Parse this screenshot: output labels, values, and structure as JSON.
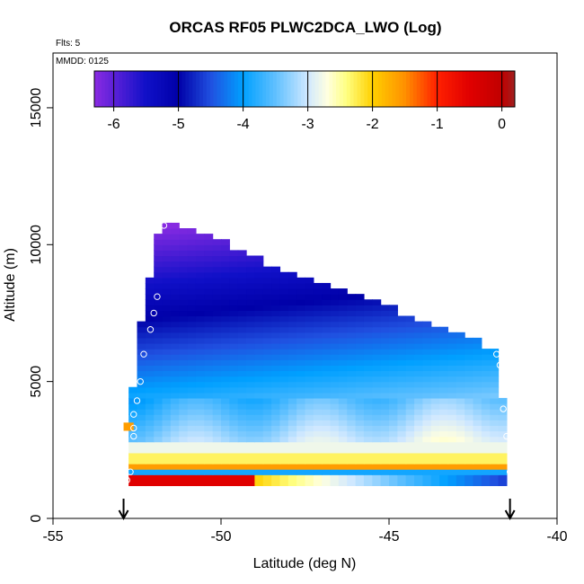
{
  "chart_data": {
    "type": "heatmap",
    "title": "ORCAS RF05 PLWC2DCA_LWO (Log)",
    "flights_note": "Flts: 5",
    "date_note": "MMDD: 0125",
    "xlabel": "Latitude (deg N)",
    "ylabel": "Altitude (m)",
    "xlim": [
      -55,
      -40
    ],
    "ylim": [
      0,
      17000
    ],
    "x_ticks": [
      -55,
      -50,
      -45,
      -40
    ],
    "x_tick_labels": [
      "-55",
      "-50",
      "-45",
      "-40"
    ],
    "y_ticks": [
      0,
      5000,
      10000,
      15000
    ],
    "y_tick_labels": [
      "0",
      "5000",
      "10000",
      "15000"
    ],
    "colorbar": {
      "range": [
        -6.3,
        0.2
      ],
      "ticks": [
        -6,
        -5,
        -4,
        -3,
        -2,
        -1,
        0
      ],
      "tick_labels": [
        "-6",
        "-5",
        "-4",
        "-3",
        "-2",
        "-1",
        "0"
      ],
      "stops": [
        {
          "v": -6.3,
          "c": "#8a2be2"
        },
        {
          "v": -5.5,
          "c": "#1010c8"
        },
        {
          "v": -5.0,
          "c": "#0000a8"
        },
        {
          "v": -4.5,
          "c": "#2050e0"
        },
        {
          "v": -4.0,
          "c": "#00a0ff"
        },
        {
          "v": -3.5,
          "c": "#60c0ff"
        },
        {
          "v": -3.0,
          "c": "#d0e8ff"
        },
        {
          "v": -2.7,
          "c": "#ffffe0"
        },
        {
          "v": -2.4,
          "c": "#ffff80"
        },
        {
          "v": -2.0,
          "c": "#ffd000"
        },
        {
          "v": -1.5,
          "c": "#ff9000"
        },
        {
          "v": -1.0,
          "c": "#ff2000"
        },
        {
          "v": -0.5,
          "c": "#e00000"
        },
        {
          "v": 0.0,
          "c": "#c00000"
        },
        {
          "v": 0.2,
          "c": "#a02020"
        }
      ]
    },
    "arrows_latitude": [
      -52.9,
      -41.4
    ],
    "upper_boundary": [
      [
        -51.8,
        10800
      ],
      [
        -51.3,
        10600
      ],
      [
        -50.8,
        10300
      ],
      [
        -50.3,
        10100
      ],
      [
        -49.8,
        9800
      ],
      [
        -49.3,
        9500
      ],
      [
        -48.8,
        9200
      ],
      [
        -48.3,
        9000
      ],
      [
        -47.8,
        8800
      ],
      [
        -47.3,
        8500
      ],
      [
        -46.8,
        8300
      ],
      [
        -46.3,
        8100
      ],
      [
        -45.8,
        7900
      ],
      [
        -45.3,
        7700
      ],
      [
        -44.8,
        7400
      ],
      [
        -44.3,
        7200
      ],
      [
        -43.8,
        7000
      ],
      [
        -43.3,
        6700
      ],
      [
        -42.8,
        6500
      ],
      [
        -42.3,
        6200
      ],
      [
        -41.8,
        6000
      ]
    ],
    "west_edge": [
      [
        1200,
        -52.8
      ],
      [
        3300,
        -52.8
      ],
      [
        5000,
        -52.6
      ],
      [
        7000,
        -52.4
      ],
      [
        8300,
        -52.2
      ],
      [
        10800,
        -51.8
      ]
    ],
    "east_edge": [
      [
        1200,
        -41.4
      ],
      [
        3300,
        -41.5
      ],
      [
        5000,
        -41.7
      ],
      [
        6000,
        -41.8
      ]
    ],
    "low_level_bands": [
      {
        "y0": 1300,
        "y1": 1600,
        "value": -0.5
      },
      {
        "y0": 1600,
        "y1": 1800,
        "value": -3.9
      },
      {
        "y0": 1800,
        "y1": 2100,
        "value": -1.6
      },
      {
        "y0": 2100,
        "y1": 2400,
        "value": -2.3
      },
      {
        "y0": 2400,
        "y1": 2800,
        "value": -2.8
      }
    ],
    "profile_points": [
      [
        -52.8,
        1400
      ],
      [
        -52.7,
        1700
      ],
      [
        -52.6,
        3000
      ],
      [
        -52.6,
        3300
      ],
      [
        -52.6,
        3800
      ],
      [
        -52.5,
        4300
      ],
      [
        -52.4,
        5000
      ],
      [
        -52.3,
        6000
      ],
      [
        -52.1,
        6900
      ],
      [
        -52.0,
        7500
      ],
      [
        -51.9,
        8100
      ],
      [
        -51.7,
        10700
      ],
      [
        -41.8,
        6000
      ],
      [
        -41.7,
        5600
      ],
      [
        -41.6,
        5000
      ],
      [
        -41.6,
        4000
      ],
      [
        -41.5,
        3000
      ],
      [
        -41.4,
        1700
      ]
    ]
  }
}
